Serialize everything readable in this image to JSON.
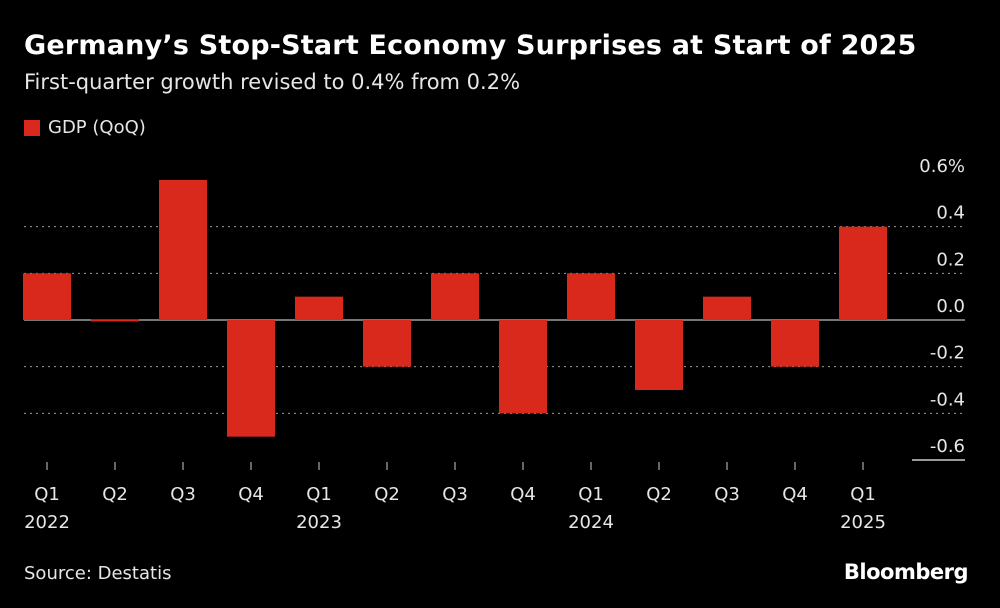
{
  "title": "Germany’s Stop-Start Economy Surprises at Start of 2025",
  "subtitle": "First-quarter growth revised to 0.4% from 0.2%",
  "source": "Source: Destatis",
  "logo": "Bloomberg",
  "colors": {
    "bar": "#d9291c",
    "background": "#000000",
    "grid": "#9a9a9a",
    "text": "#e6e6e6"
  },
  "chart_data": {
    "type": "bar",
    "title": "Germany’s Stop-Start Economy Surprises at Start of 2025",
    "subtitle": "First-quarter growth revised to 0.4% from 0.2%",
    "xlabel": "",
    "ylabel": "",
    "ylim": [
      -0.6,
      0.6
    ],
    "y_ticks": [
      "0.6%",
      "0.4",
      "0.2",
      "0.0",
      "-0.2",
      "-0.4",
      "-0.6"
    ],
    "y_tick_values": [
      0.6,
      0.4,
      0.2,
      0.0,
      -0.2,
      -0.4,
      -0.6
    ],
    "categories": [
      "Q1",
      "Q2",
      "Q3",
      "Q4",
      "Q1",
      "Q2",
      "Q3",
      "Q4",
      "Q1",
      "Q2",
      "Q3",
      "Q4",
      "Q1"
    ],
    "year_labels": [
      "2022",
      "",
      "",
      "",
      "2023",
      "",
      "",
      "",
      "2024",
      "",
      "",
      "",
      "2025"
    ],
    "series": [
      {
        "name": "GDP (QoQ)",
        "values": [
          0.2,
          -0.005,
          0.6,
          -0.5,
          0.1,
          -0.2,
          0.2,
          -0.4,
          0.2,
          -0.3,
          0.1,
          -0.2,
          0.4
        ]
      }
    ],
    "legend": "top-left",
    "grid": true
  }
}
